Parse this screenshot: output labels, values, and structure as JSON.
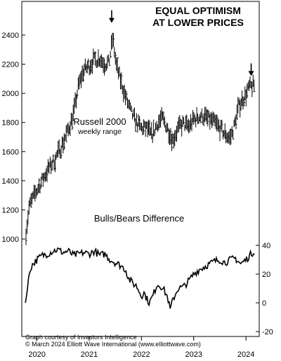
{
  "chart_data": [
    {
      "type": "bar",
      "subtype": "ohlc-range",
      "title": "EQUAL OPTIMISM",
      "subtitle": "AT LOWER PRICES",
      "series_label": "Russell 2000",
      "series_sublabel": "weekly range",
      "ylim": [
        950,
        2500
      ],
      "yticks": [
        "2400",
        "2200",
        "2000",
        "1800",
        "1600",
        "1400",
        "1200",
        "1000"
      ],
      "ytick_values": [
        2400,
        2200,
        2000,
        1800,
        1600,
        1400,
        1200,
        1000
      ],
      "x_start": 2019.75,
      "x_end": 2024.2,
      "keypoints": [
        [
          2019.79,
          1050
        ],
        [
          2019.85,
          1220
        ],
        [
          2019.95,
          1300
        ],
        [
          2020.05,
          1370
        ],
        [
          2020.2,
          1470
        ],
        [
          2020.35,
          1550
        ],
        [
          2020.5,
          1660
        ],
        [
          2020.6,
          1750
        ],
        [
          2020.7,
          1860
        ],
        [
          2020.8,
          2060
        ],
        [
          2020.9,
          2160
        ],
        [
          2021.0,
          2190
        ],
        [
          2021.1,
          2230
        ],
        [
          2021.2,
          2240
        ],
        [
          2021.3,
          2200
        ],
        [
          2021.38,
          2210
        ],
        [
          2021.45,
          2380
        ],
        [
          2021.52,
          2190
        ],
        [
          2021.6,
          2090
        ],
        [
          2021.7,
          1970
        ],
        [
          2021.8,
          1870
        ],
        [
          2021.9,
          1800
        ],
        [
          2022.0,
          1760
        ],
        [
          2022.1,
          1760
        ],
        [
          2022.2,
          1710
        ],
        [
          2022.3,
          1790
        ],
        [
          2022.4,
          1830
        ],
        [
          2022.5,
          1760
        ],
        [
          2022.6,
          1680
        ],
        [
          2022.7,
          1760
        ],
        [
          2022.8,
          1790
        ],
        [
          2022.9,
          1770
        ],
        [
          2023.0,
          1820
        ],
        [
          2023.1,
          1840
        ],
        [
          2023.2,
          1840
        ],
        [
          2023.3,
          1820
        ],
        [
          2023.4,
          1800
        ],
        [
          2023.5,
          1760
        ],
        [
          2023.6,
          1720
        ],
        [
          2023.7,
          1690
        ],
        [
          2023.78,
          1780
        ],
        [
          2023.85,
          1900
        ],
        [
          2023.92,
          1950
        ],
        [
          2024.0,
          1990
        ],
        [
          2024.06,
          2040
        ],
        [
          2024.12,
          2050
        ],
        [
          2024.16,
          2055
        ]
      ],
      "arrows": [
        {
          "x": 2021.43,
          "y": 2455
        },
        {
          "x": 2024.1,
          "y": 2090
        }
      ]
    },
    {
      "type": "line",
      "title": "Bulls/Bears Difference",
      "ylim": [
        -20,
        40
      ],
      "yticks": [
        "40",
        "20",
        "0",
        "-20"
      ],
      "ytick_values": [
        40,
        20,
        0,
        -20
      ],
      "x_start": 2019.75,
      "x_end": 2024.2,
      "keypoints": [
        [
          2019.78,
          0
        ],
        [
          2019.82,
          10
        ],
        [
          2019.86,
          22
        ],
        [
          2019.9,
          26
        ],
        [
          2020.0,
          30
        ],
        [
          2020.1,
          33
        ],
        [
          2020.2,
          34
        ],
        [
          2020.3,
          36
        ],
        [
          2020.4,
          37
        ],
        [
          2020.5,
          35
        ],
        [
          2020.6,
          36
        ],
        [
          2020.7,
          33
        ],
        [
          2020.8,
          34
        ],
        [
          2020.9,
          35
        ],
        [
          2021.0,
          34
        ],
        [
          2021.1,
          36
        ],
        [
          2021.2,
          33
        ],
        [
          2021.3,
          34
        ],
        [
          2021.4,
          30
        ],
        [
          2021.5,
          28
        ],
        [
          2021.6,
          26
        ],
        [
          2021.7,
          23
        ],
        [
          2021.75,
          17
        ],
        [
          2021.85,
          13
        ],
        [
          2021.9,
          12
        ],
        [
          2022.0,
          5
        ],
        [
          2022.05,
          7
        ],
        [
          2022.1,
          3
        ],
        [
          2022.15,
          0
        ],
        [
          2022.22,
          5
        ],
        [
          2022.3,
          13
        ],
        [
          2022.4,
          11
        ],
        [
          2022.5,
          4
        ],
        [
          2022.55,
          -5
        ],
        [
          2022.6,
          2
        ],
        [
          2022.7,
          10
        ],
        [
          2022.8,
          11
        ],
        [
          2022.9,
          15
        ],
        [
          2023.0,
          20
        ],
        [
          2023.1,
          23
        ],
        [
          2023.2,
          25
        ],
        [
          2023.3,
          27
        ],
        [
          2023.4,
          29
        ],
        [
          2023.5,
          30
        ],
        [
          2023.6,
          28
        ],
        [
          2023.7,
          30
        ],
        [
          2023.8,
          31
        ],
        [
          2023.9,
          27
        ],
        [
          2024.0,
          30
        ],
        [
          2024.05,
          32
        ],
        [
          2024.1,
          34
        ],
        [
          2024.16,
          36
        ]
      ]
    }
  ],
  "x_axis": {
    "ticks": [
      "2020",
      "2021",
      "2022",
      "2023",
      "2024"
    ],
    "tick_values": [
      2020,
      2021,
      2022,
      2023,
      2024
    ]
  },
  "credit": {
    "line1": "Graph courtesy of Investors Intelligence",
    "line2": "© March 2024  Elliott Wave International (www.elliottwave.com)"
  }
}
